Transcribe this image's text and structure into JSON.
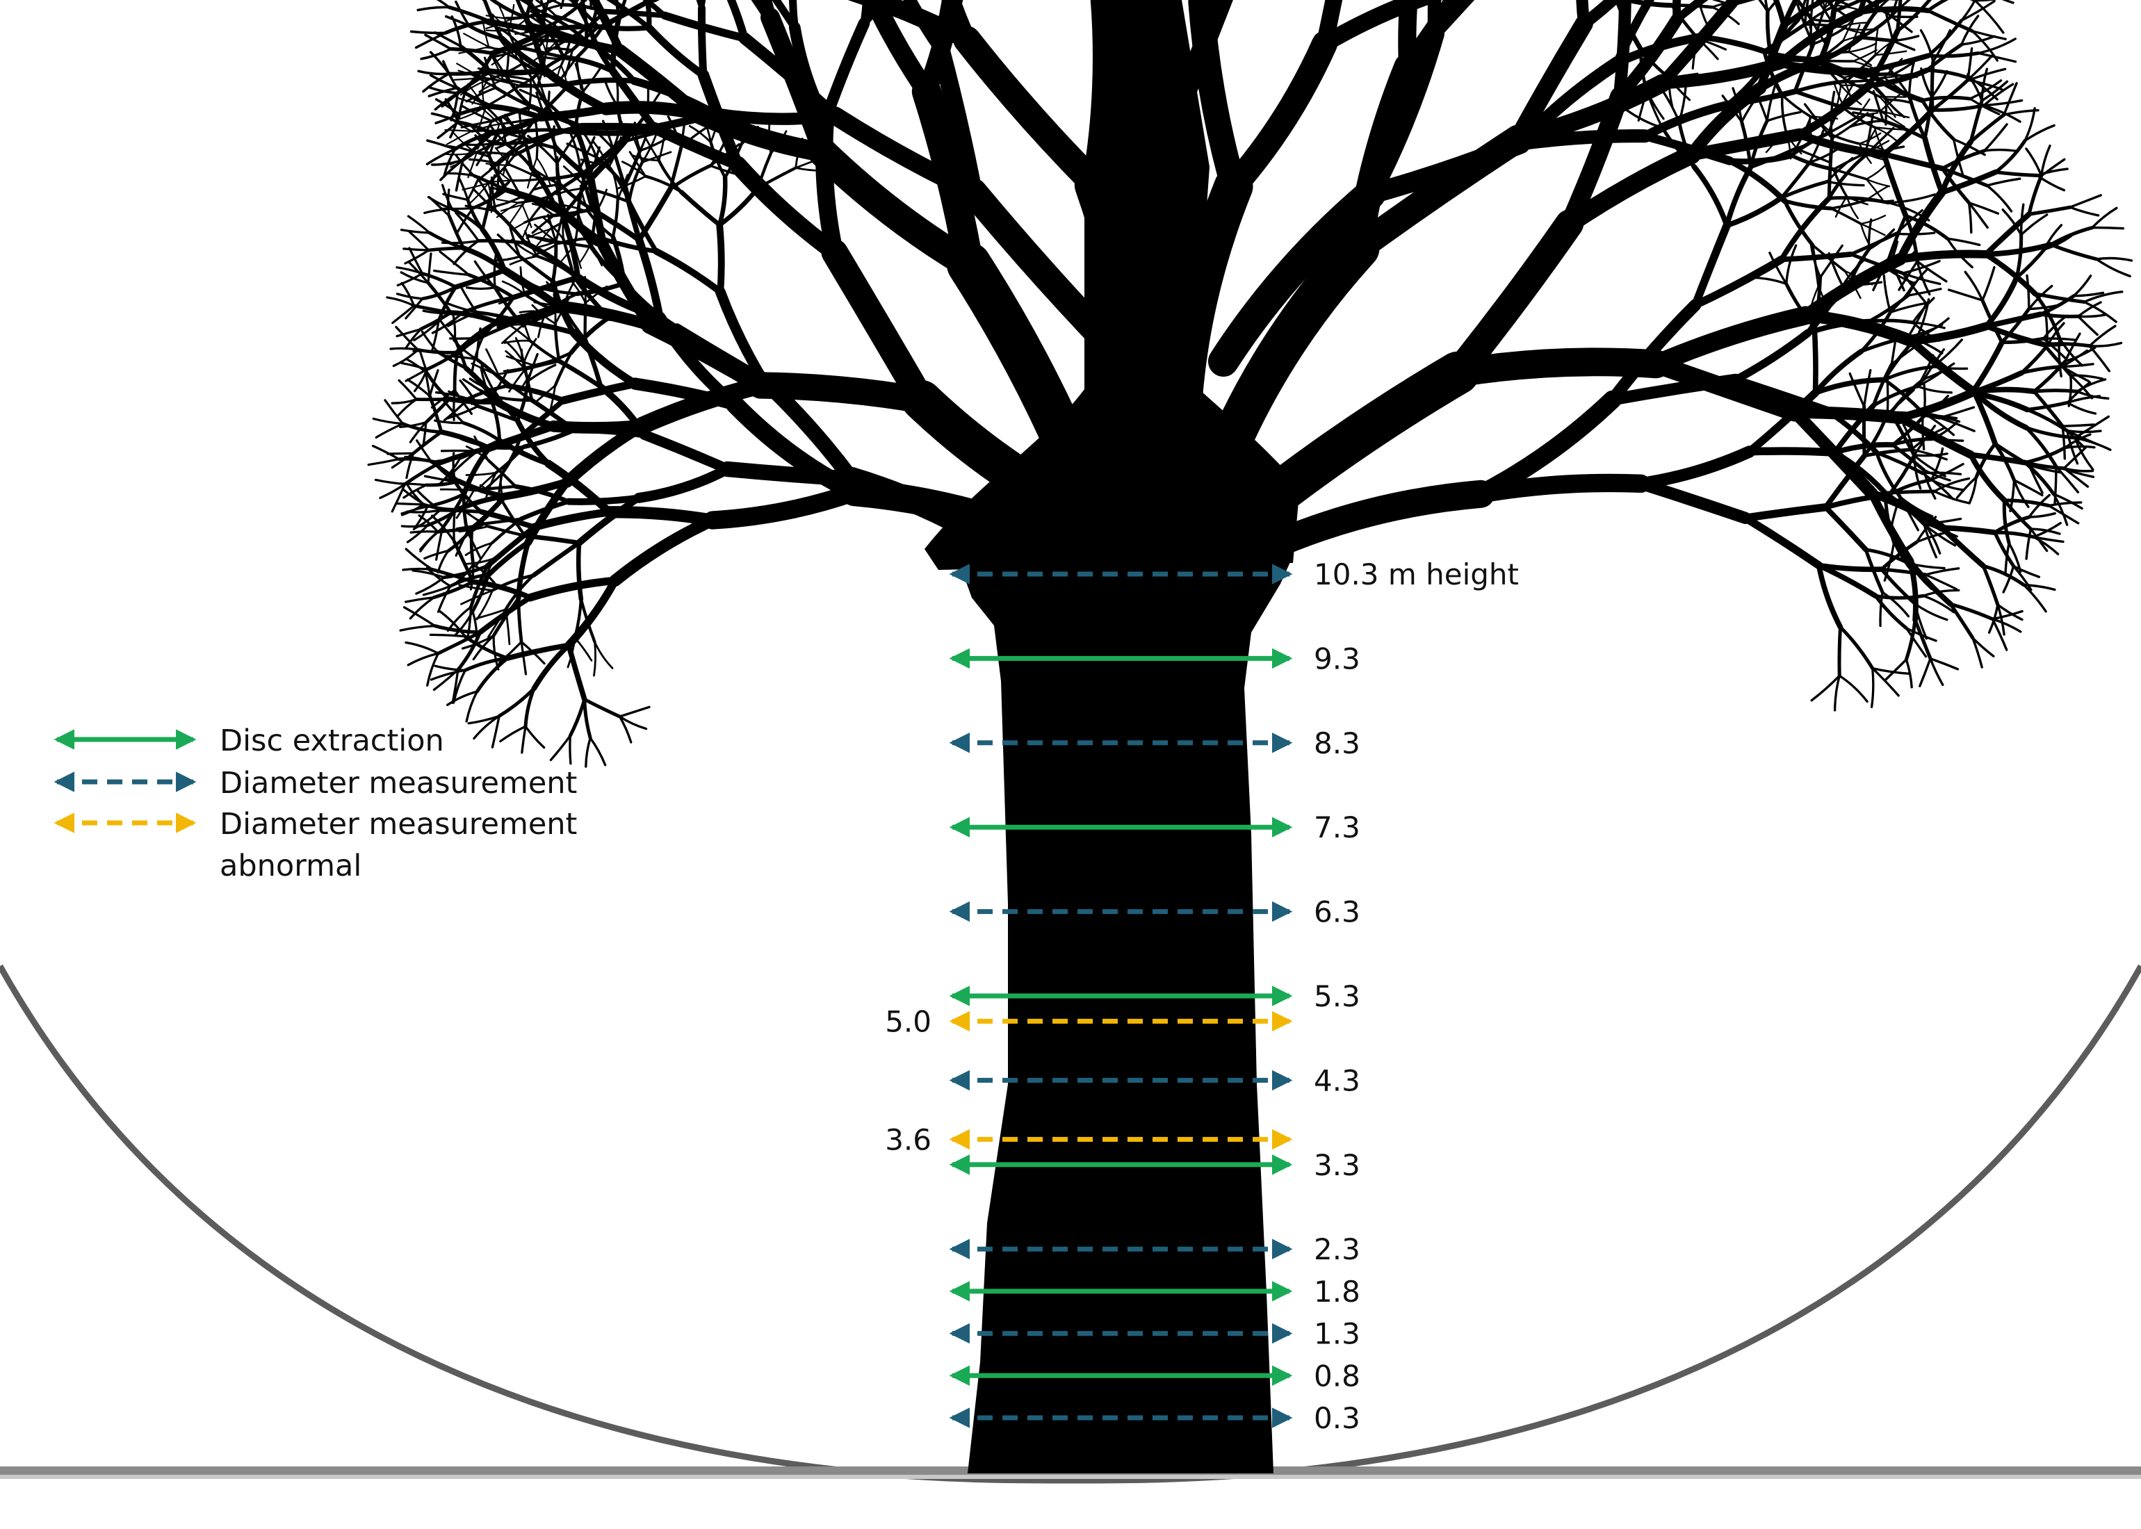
{
  "legend": {
    "items": [
      {
        "label_lines": [
          "Disc extraction"
        ],
        "kind": "disc"
      },
      {
        "label_lines": [
          "Diameter measurement"
        ],
        "kind": "diameter"
      },
      {
        "label_lines": [
          "Diameter measurement",
          "abnormal"
        ],
        "kind": "abnormal"
      }
    ]
  },
  "styles": {
    "disc": {
      "color": "#1aaa55",
      "dashed": false
    },
    "diameter": {
      "color": "#1f5f7a",
      "dashed": true
    },
    "abnormal": {
      "color": "#f2b705",
      "dashed": true
    }
  },
  "measurements": [
    {
      "label": "10.3 m height",
      "kind": "diameter",
      "height_m": 10.3
    },
    {
      "label": "9.3",
      "kind": "disc",
      "height_m": 9.3
    },
    {
      "label": "8.3",
      "kind": "diameter",
      "height_m": 8.3
    },
    {
      "label": "7.3",
      "kind": "disc",
      "height_m": 7.3
    },
    {
      "label": "6.3",
      "kind": "diameter",
      "height_m": 6.3
    },
    {
      "label": "5.3",
      "kind": "disc",
      "height_m": 5.3
    },
    {
      "label": "5.0",
      "kind": "abnormal",
      "height_m": 5.0
    },
    {
      "label": "4.3",
      "kind": "diameter",
      "height_m": 4.3
    },
    {
      "label": "3.6",
      "kind": "abnormal",
      "height_m": 3.6
    },
    {
      "label": "3.3",
      "kind": "disc",
      "height_m": 3.3
    },
    {
      "label": "2.3",
      "kind": "diameter",
      "height_m": 2.3
    },
    {
      "label": "1.8",
      "kind": "disc",
      "height_m": 1.8
    },
    {
      "label": "1.3",
      "kind": "diameter",
      "height_m": 1.3
    },
    {
      "label": "0.8",
      "kind": "disc",
      "height_m": 0.8
    },
    {
      "label": "0.3",
      "kind": "diameter",
      "height_m": 0.3
    }
  ]
}
